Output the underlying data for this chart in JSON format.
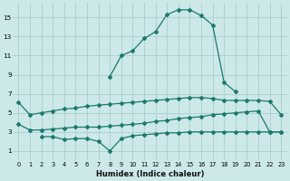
{
  "xlabel": "Humidex (Indice chaleur)",
  "background_color": "#cce8e8",
  "grid_color": "#aacece",
  "line_color": "#1a7a6e",
  "ylim": [
    0,
    16.5
  ],
  "xlim": [
    -0.5,
    23.5
  ],
  "yticks": [
    1,
    3,
    5,
    7,
    9,
    11,
    13,
    15
  ],
  "xticks": [
    0,
    1,
    2,
    3,
    4,
    5,
    6,
    7,
    8,
    9,
    10,
    11,
    12,
    13,
    14,
    15,
    16,
    17,
    18,
    19,
    20,
    21,
    22,
    23
  ],
  "line_top_x": [
    8,
    9,
    10,
    11,
    12,
    13,
    14,
    15,
    16,
    17,
    18,
    19
  ],
  "line_top_y": [
    8.8,
    11.0,
    11.5,
    12.8,
    13.5,
    15.3,
    15.8,
    15.8,
    15.2,
    14.2,
    8.2,
    7.2
  ],
  "line_upper_x": [
    0,
    1,
    2,
    3,
    4,
    5,
    6,
    7,
    8,
    9,
    10,
    11,
    12,
    13,
    14,
    15,
    16,
    17,
    18,
    19,
    20,
    21,
    22,
    23
  ],
  "line_upper_y": [
    6.1,
    4.8,
    5.0,
    5.2,
    5.4,
    5.5,
    5.7,
    5.8,
    5.9,
    6.0,
    6.1,
    6.2,
    6.3,
    6.4,
    6.5,
    6.6,
    6.6,
    6.5,
    6.3,
    6.3,
    6.3,
    6.3,
    6.2,
    4.8
  ],
  "line_lower_x": [
    0,
    1,
    2,
    3,
    4,
    5,
    6,
    7,
    8,
    9,
    10,
    11,
    12,
    13,
    14,
    15,
    16,
    17,
    18,
    19,
    20,
    21,
    22,
    23
  ],
  "line_lower_y": [
    3.8,
    3.2,
    3.2,
    3.3,
    3.4,
    3.5,
    3.5,
    3.5,
    3.6,
    3.7,
    3.8,
    3.9,
    4.1,
    4.2,
    4.4,
    4.5,
    4.6,
    4.8,
    4.9,
    5.0,
    5.1,
    5.2,
    3.0,
    3.0
  ],
  "line_bottom_x": [
    2,
    3,
    4,
    5,
    6,
    7,
    8,
    9,
    10,
    11,
    12,
    13,
    14,
    15,
    16,
    17,
    18,
    19,
    20,
    21,
    22,
    23
  ],
  "line_bottom_y": [
    2.5,
    2.5,
    2.2,
    2.3,
    2.3,
    2.0,
    1.0,
    2.3,
    2.6,
    2.7,
    2.8,
    2.9,
    2.9,
    3.0,
    3.0,
    3.0,
    3.0,
    3.0,
    3.0,
    3.0,
    3.0,
    3.0
  ]
}
